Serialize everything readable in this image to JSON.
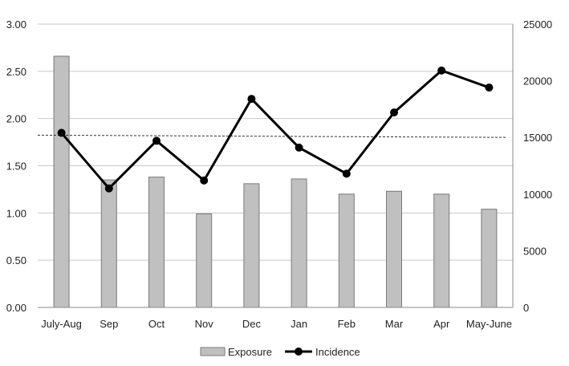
{
  "chart_data": {
    "type": "bar",
    "categories": [
      "July-Aug",
      "Sep",
      "Oct",
      "Nov",
      "Dec",
      "Jan",
      "Feb",
      "Mar",
      "Apr",
      "May-June"
    ],
    "series": [
      {
        "name": "Exposure",
        "type": "bar",
        "axis": "left",
        "values": [
          2.66,
          1.35,
          1.38,
          0.99,
          1.31,
          1.36,
          1.2,
          1.23,
          1.2,
          1.04
        ]
      },
      {
        "name": "Incidence",
        "type": "line",
        "axis": "right",
        "values": [
          15400,
          10500,
          14700,
          11200,
          18400,
          14100,
          11800,
          17200,
          20900,
          19400
        ]
      }
    ],
    "reference_line": {
      "axis": "right",
      "start": 15200,
      "end": 15000,
      "style": "dashed"
    },
    "ylim_left": [
      0,
      3
    ],
    "yticks_left": [
      "0.00",
      "0.50",
      "1.00",
      "1.50",
      "2.00",
      "2.50",
      "3.00"
    ],
    "ylim_right": [
      0,
      25000
    ],
    "yticks_right": [
      "0",
      "5000",
      "10000",
      "15000",
      "20000",
      "25000"
    ],
    "grid": true,
    "legend": {
      "position": "bottom",
      "items": [
        "Exposure",
        "Incidence"
      ]
    },
    "colors": {
      "bar_fill": "#c0c0c0",
      "bar_stroke": "#7a7a7a",
      "line": "#000000",
      "grid": "#c8c8c8",
      "axis": "#888888"
    }
  }
}
